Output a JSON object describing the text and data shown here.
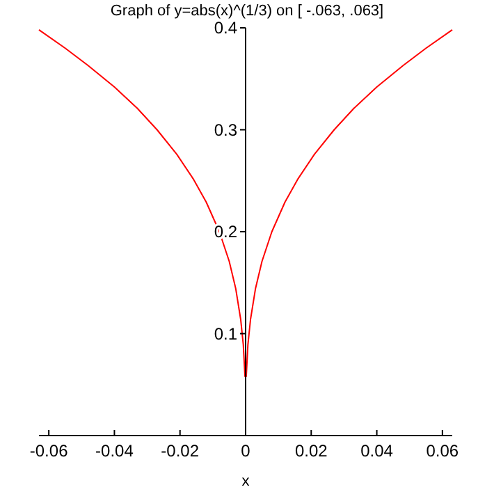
{
  "chart_data": {
    "type": "line",
    "title": "Graph of y=abs(x)^(1/3) on [ -.063,  .063]",
    "xlabel": "x",
    "x": [
      -0.063,
      -0.055,
      -0.048,
      -0.04,
      -0.033,
      -0.027,
      -0.021,
      -0.016,
      -0.012,
      -0.008,
      -0.005,
      -0.003,
      -0.0015,
      -0.0007,
      -0.0002,
      0.0002,
      0.0007,
      0.0015,
      0.003,
      0.005,
      0.008,
      0.012,
      0.016,
      0.021,
      0.027,
      0.033,
      0.04,
      0.048,
      0.055,
      0.063
    ],
    "series": [
      {
        "color": "#ff0000",
        "values": [
          0.398,
          0.38,
          0.363,
          0.342,
          0.321,
          0.3,
          0.276,
          0.252,
          0.229,
          0.2,
          0.171,
          0.144,
          0.114,
          0.089,
          0.058,
          0.058,
          0.089,
          0.114,
          0.144,
          0.171,
          0.2,
          0.229,
          0.252,
          0.276,
          0.3,
          0.321,
          0.342,
          0.363,
          0.38,
          0.398
        ]
      }
    ],
    "xlim": [
      -0.063,
      0.063
    ],
    "ylim": [
      0,
      0.4
    ],
    "xticks": [
      -0.06,
      -0.04,
      -0.02,
      0,
      0.02,
      0.04,
      0.06
    ],
    "yticks": [
      0.1,
      0.2,
      0.3,
      0.4
    ],
    "marker": "none",
    "line_style": "solid"
  }
}
